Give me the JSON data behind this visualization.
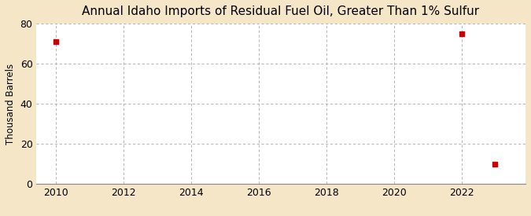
{
  "title": "Annual Idaho Imports of Residual Fuel Oil, Greater Than 1% Sulfur",
  "ylabel": "Thousand Barrels",
  "x_data": [
    2010,
    2022,
    2023
  ],
  "y_data": [
    71,
    75,
    10
  ],
  "xlim": [
    2009.4,
    2023.9
  ],
  "ylim": [
    0,
    80
  ],
  "yticks": [
    0,
    20,
    40,
    60,
    80
  ],
  "xticks": [
    2010,
    2012,
    2014,
    2016,
    2018,
    2020,
    2022
  ],
  "marker_color": "#cc0000",
  "marker_size": 4,
  "fig_bg_color": "#f5e6c8",
  "plot_bg_color": "#ffffff",
  "grid_color": "#aaaaaa",
  "title_fontsize": 11,
  "label_fontsize": 8.5,
  "tick_fontsize": 9,
  "source_fontsize": 7.5
}
